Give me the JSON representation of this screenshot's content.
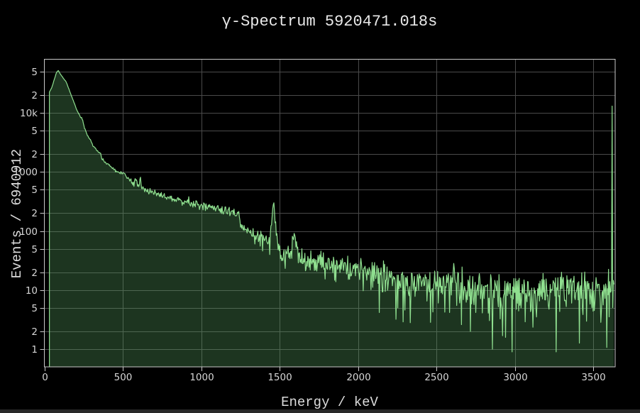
{
  "page": {
    "background": "#000000",
    "bottom_strip_color": "#282828"
  },
  "chart_data": {
    "type": "area",
    "scale": "log-y histogram",
    "title": "γ-Spectrum 5920471.018s",
    "xlabel": "Energy / keV",
    "ylabel": "Events / 6940912",
    "total_events": "6940912",
    "live_time_s": "5920471.018",
    "xlim": [
      0,
      3636
    ],
    "ylim_log": [
      0.5,
      79000
    ],
    "grid": true,
    "x_ticks": [
      {
        "label": "0",
        "value": 0
      },
      {
        "label": "500",
        "value": 500
      },
      {
        "label": "1000",
        "value": 1000
      },
      {
        "label": "1500",
        "value": 1500
      },
      {
        "label": "2000",
        "value": 2000
      },
      {
        "label": "2500",
        "value": 2500
      },
      {
        "label": "3000",
        "value": 3000
      },
      {
        "label": "3500",
        "value": 3500
      }
    ],
    "y_ticks": [
      {
        "label": "5",
        "value": 50000
      },
      {
        "label": "2",
        "value": 20000
      },
      {
        "label": "10k",
        "value": 10000
      },
      {
        "label": "5",
        "value": 5000
      },
      {
        "label": "2",
        "value": 2000
      },
      {
        "label": "1000",
        "value": 1000
      },
      {
        "label": "5",
        "value": 500
      },
      {
        "label": "2",
        "value": 200
      },
      {
        "label": "100",
        "value": 100
      },
      {
        "label": "5",
        "value": 50
      },
      {
        "label": "2",
        "value": 20
      },
      {
        "label": "10",
        "value": 10
      },
      {
        "label": "5",
        "value": 5
      },
      {
        "label": "2",
        "value": 2
      },
      {
        "label": "1",
        "value": 1
      }
    ],
    "colors": {
      "background": "#000000",
      "line": "#8fdf8f",
      "fill": "rgba(88,160,96,0.33)",
      "grid": "#4a4a4a",
      "frame": "#c9c9c9",
      "tick_text": "#d6d6d6"
    },
    "bin_width_kev": 3.8,
    "envelope_points": [
      [
        30,
        22500
      ],
      [
        45,
        26500
      ],
      [
        60,
        36000
      ],
      [
        75,
        48000
      ],
      [
        86,
        52500
      ],
      [
        95,
        47500
      ],
      [
        110,
        41500
      ],
      [
        137,
        33500
      ],
      [
        155,
        25000
      ],
      [
        181,
        16500
      ],
      [
        205,
        11000
      ],
      [
        226,
        8800
      ],
      [
        233,
        8300
      ],
      [
        240,
        7900
      ],
      [
        252,
        5800
      ],
      [
        266,
        4600
      ],
      [
        280,
        3800
      ],
      [
        292,
        3550
      ],
      [
        300,
        3100
      ],
      [
        313,
        2700
      ],
      [
        330,
        2350
      ],
      [
        348,
        2150
      ],
      [
        355,
        2050
      ],
      [
        365,
        1750
      ],
      [
        380,
        1510
      ],
      [
        400,
        1340
      ],
      [
        430,
        1180
      ],
      [
        462,
        1000
      ],
      [
        490,
        950
      ],
      [
        508,
        930
      ],
      [
        516,
        880
      ],
      [
        530,
        800
      ],
      [
        552,
        690
      ],
      [
        570,
        640
      ],
      [
        583,
        730
      ],
      [
        591,
        630
      ],
      [
        602,
        560
      ],
      [
        609,
        860
      ],
      [
        617,
        555
      ],
      [
        632,
        515
      ],
      [
        662,
        470
      ],
      [
        700,
        440
      ],
      [
        740,
        410
      ],
      [
        780,
        380
      ],
      [
        830,
        350
      ],
      [
        880,
        310
      ],
      [
        911,
        335
      ],
      [
        928,
        290
      ],
      [
        970,
        278
      ],
      [
        1010,
        262
      ],
      [
        1060,
        248
      ],
      [
        1120,
        232
      ],
      [
        1170,
        215
      ],
      [
        1238,
        192
      ],
      [
        1252,
        122
      ],
      [
        1290,
        97
      ],
      [
        1330,
        86
      ],
      [
        1380,
        78
      ],
      [
        1420,
        68
      ],
      [
        1441,
        76
      ],
      [
        1450,
        170
      ],
      [
        1460,
        330
      ],
      [
        1471,
        160
      ],
      [
        1482,
        70
      ],
      [
        1502,
        42
      ],
      [
        1540,
        39
      ],
      [
        1572,
        47
      ],
      [
        1586,
        78
      ],
      [
        1593,
        123
      ],
      [
        1601,
        68
      ],
      [
        1617,
        36
      ],
      [
        1660,
        32
      ],
      [
        1729,
        31
      ],
      [
        1764,
        33
      ],
      [
        1800,
        27
      ],
      [
        1850,
        26
      ],
      [
        1911,
        25
      ],
      [
        1970,
        24
      ],
      [
        2050,
        21
      ],
      [
        2110,
        20
      ],
      [
        2204,
        16
      ],
      [
        2300,
        14
      ],
      [
        2380,
        12.5
      ],
      [
        2450,
        12
      ],
      [
        2520,
        11.5
      ],
      [
        2598,
        14
      ],
      [
        2610,
        28
      ],
      [
        2622,
        12
      ],
      [
        2700,
        10.5
      ],
      [
        2800,
        10
      ],
      [
        2900,
        10
      ],
      [
        3000,
        10
      ],
      [
        3100,
        10
      ],
      [
        3200,
        10
      ],
      [
        3300,
        10
      ],
      [
        3400,
        10
      ],
      [
        3500,
        10
      ],
      [
        3560,
        9.5
      ],
      [
        3600,
        10
      ],
      [
        3636,
        10
      ]
    ],
    "notable_peaks_kev": [
      86,
      238,
      352,
      583,
      609,
      911,
      1460,
      1593,
      2614
    ],
    "overflow_bin": {
      "energy": 3622,
      "counts": 13000
    },
    "forced_dips": [
      [
        1503,
        34
      ],
      [
        2332,
        2.8
      ],
      [
        2660,
        2.6
      ],
      [
        2718,
        2.0
      ],
      [
        2858,
        1.0
      ],
      [
        3066,
        2.9
      ],
      [
        3140,
        3.5
      ]
    ],
    "noise": {
      "seed": 20,
      "factor": 1.25,
      "smooth_above": 2000,
      "min_display": 0.9
    }
  }
}
